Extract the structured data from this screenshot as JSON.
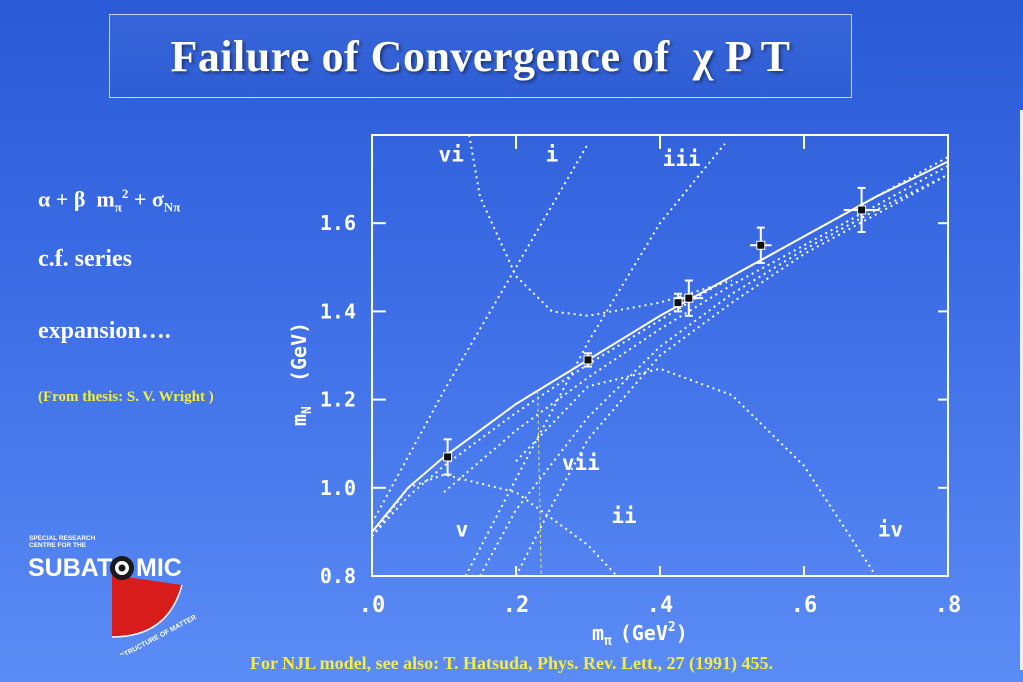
{
  "title": {
    "main": "Failure of Convergence of",
    "chi": "χ",
    "suffix": "P T"
  },
  "left": {
    "formula": {
      "alpha_plus_beta": "α + β",
      "m": "m",
      "pi_sub": "π",
      "power": "2",
      "plus_sigma": "+ σ",
      "npi_sub": "Nπ"
    },
    "cf_series": "c.f. series",
    "expansion": "expansion….",
    "thesis": "(From thesis: S. V. Wright )"
  },
  "footnote": "For NJL model, see also: T. Hatsuda, Phys. Rev. Lett., 27 (1991) 455.",
  "logo": {
    "line1": "SPECIAL RESEARCH",
    "line2": "CENTRE FOR THE",
    "word_left": "SUBAT",
    "word_right": "MIC",
    "curve_text": "STRUCTURE OF MATTER"
  },
  "colors": {
    "background_top": "#2a5ad6",
    "background_bottom": "#5b8cf5",
    "highlight": "#f3ee3e",
    "logo_red": "#d81b1b"
  },
  "chart_data": {
    "type": "line",
    "xlabel_text": "m",
    "xlabel_sub": "π",
    "xlabel_units": "(GeV",
    "xlabel_power": "2",
    "ylabel_text": "m",
    "ylabel_sub": "N",
    "ylabel_units": "(GeV)",
    "xlim": [
      0.0,
      0.8
    ],
    "ylim": [
      0.8,
      1.8
    ],
    "x_ticks": [
      {
        "value": 0.0,
        "label": ".0"
      },
      {
        "value": 0.2,
        "label": ".2"
      },
      {
        "value": 0.4,
        "label": ".4"
      },
      {
        "value": 0.6,
        "label": ".6"
      },
      {
        "value": 0.8,
        "label": ".8"
      }
    ],
    "y_ticks": [
      {
        "value": 0.8,
        "label": "0.8"
      },
      {
        "value": 1.0,
        "label": "1.0"
      },
      {
        "value": 1.2,
        "label": "1.2"
      },
      {
        "value": 1.4,
        "label": "1.4"
      },
      {
        "value": 1.6,
        "label": "1.6"
      }
    ],
    "curve_labels": [
      {
        "label": "vi",
        "x": 0.11,
        "y": 1.74
      },
      {
        "label": "i",
        "x": 0.25,
        "y": 1.74
      },
      {
        "label": "iii",
        "x": 0.43,
        "y": 1.73
      },
      {
        "label": "vii",
        "x": 0.29,
        "y": 1.04
      },
      {
        "label": "ii",
        "x": 0.35,
        "y": 0.92
      },
      {
        "label": "v",
        "x": 0.125,
        "y": 0.89
      },
      {
        "label": "iv",
        "x": 0.72,
        "y": 0.89
      }
    ],
    "series": [
      {
        "name": "",
        "style": "solid",
        "x": [
          0.0,
          0.05,
          0.1,
          0.2,
          0.3,
          0.4,
          0.5,
          0.6,
          0.7,
          0.8
        ],
        "y": [
          0.9,
          1.0,
          1.07,
          1.19,
          1.29,
          1.39,
          1.48,
          1.57,
          1.66,
          1.74
        ]
      },
      {
        "name": "",
        "style": "dotted",
        "x": [
          0.0,
          0.05,
          0.1,
          0.2,
          0.3,
          0.4,
          0.5,
          0.6,
          0.7,
          0.8
        ],
        "y": [
          0.89,
          0.98,
          1.05,
          1.17,
          1.28,
          1.38,
          1.48,
          1.57,
          1.66,
          1.75
        ]
      },
      {
        "name": "",
        "style": "dotted",
        "x": [
          0.1,
          0.2,
          0.3,
          0.4,
          0.5,
          0.6,
          0.7,
          0.8
        ],
        "y": [
          0.99,
          1.13,
          1.25,
          1.36,
          1.46,
          1.55,
          1.64,
          1.73
        ]
      },
      {
        "name": "",
        "style": "dotted",
        "x": [
          0.15,
          0.2,
          0.3,
          0.4,
          0.5,
          0.6,
          0.7,
          0.8
        ],
        "y": [
          0.8,
          0.95,
          1.16,
          1.32,
          1.44,
          1.54,
          1.63,
          1.71
        ]
      },
      {
        "name": "",
        "style": "dotted",
        "x": [
          0.2,
          0.25,
          0.3,
          0.4,
          0.5,
          0.6,
          0.7,
          0.8
        ],
        "y": [
          0.8,
          0.96,
          1.11,
          1.3,
          1.42,
          1.53,
          1.62,
          1.71
        ]
      },
      {
        "name": "",
        "style": "dotted",
        "x": [
          0.0,
          0.1,
          0.2,
          0.3
        ],
        "y": [
          0.92,
          1.22,
          1.5,
          1.78
        ]
      },
      {
        "name": "",
        "style": "dotted",
        "x": [
          0.13,
          0.2,
          0.3,
          0.4,
          0.49
        ],
        "y": [
          0.8,
          1.02,
          1.33,
          1.6,
          1.78
        ]
      },
      {
        "name": "",
        "style": "dotted",
        "x": [
          0.135,
          0.15,
          0.2,
          0.25,
          0.3,
          0.4,
          0.5
        ],
        "y": [
          1.8,
          1.66,
          1.48,
          1.4,
          1.39,
          1.42,
          1.47
        ]
      },
      {
        "name": "",
        "style": "dotted",
        "x": [
          0.2,
          0.3,
          0.4,
          0.5,
          0.6,
          0.7
        ],
        "y": [
          1.06,
          1.23,
          1.27,
          1.21,
          1.05,
          0.8
        ]
      },
      {
        "name": "",
        "style": "dotted",
        "x": [
          0.0,
          0.05,
          0.1,
          0.2,
          0.3,
          0.34
        ],
        "y": [
          0.89,
          1.0,
          1.03,
          0.99,
          0.87,
          0.8
        ]
      },
      {
        "name": "",
        "style": "dashed-thin",
        "x": [
          0.23,
          0.235
        ],
        "y": [
          1.22,
          0.8
        ]
      }
    ],
    "data_points": [
      {
        "x": 0.105,
        "y": 1.07,
        "yerr": 0.04,
        "xerr": 0.0
      },
      {
        "x": 0.3,
        "y": 1.29,
        "yerr": 0.015,
        "xerr": 0.0
      },
      {
        "x": 0.425,
        "y": 1.42,
        "yerr": 0.02,
        "xerr": 0.0
      },
      {
        "x": 0.44,
        "y": 1.43,
        "yerr": 0.04,
        "xerr": 0.02
      },
      {
        "x": 0.54,
        "y": 1.55,
        "yerr": 0.04,
        "xerr": 0.015
      },
      {
        "x": 0.68,
        "y": 1.63,
        "yerr": 0.05,
        "xerr": 0.025
      }
    ],
    "grid": false
  }
}
